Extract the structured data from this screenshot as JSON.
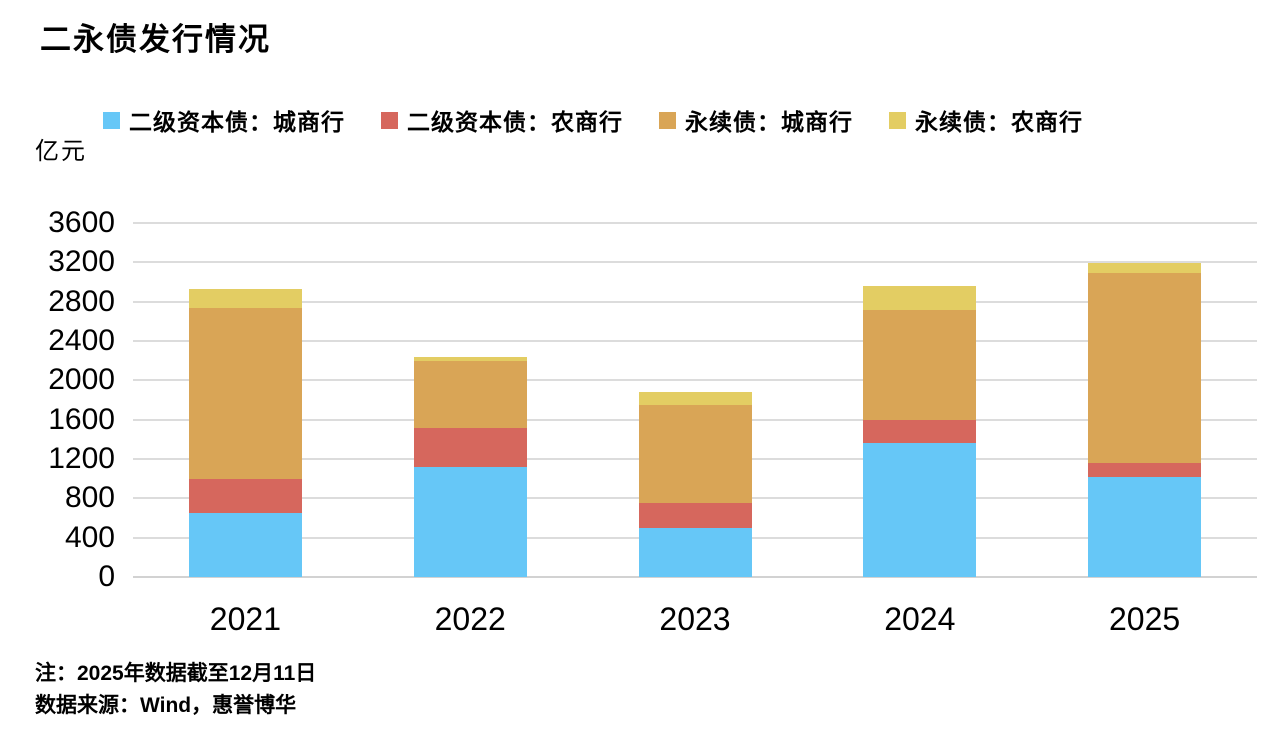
{
  "title": "二永债发行情况",
  "y_axis": {
    "unit_label": "亿元",
    "tick_values": [
      0,
      400,
      800,
      1200,
      1600,
      2000,
      2400,
      2800,
      3200,
      3600
    ],
    "max": 3600
  },
  "legend": {
    "items": [
      {
        "label": "二级资本债：城商行",
        "color": "#66C7F7"
      },
      {
        "label": "二级资本债：农商行",
        "color": "#D6675D"
      },
      {
        "label": "永续债：城商行",
        "color": "#D9A556"
      },
      {
        "label": "永续债：农商行",
        "color": "#E3CD63"
      }
    ]
  },
  "chart_data": {
    "type": "bar",
    "stacked": true,
    "title": "二永债发行情况",
    "xlabel": "",
    "ylabel": "亿元",
    "ylim": [
      0,
      3600
    ],
    "grid": true,
    "legend_position": "top",
    "categories": [
      "2021",
      "2022",
      "2023",
      "2024",
      "2025"
    ],
    "series": [
      {
        "name": "二级资本债：城商行",
        "color": "#66C7F7",
        "values": [
          650,
          1120,
          500,
          1360,
          1020
        ]
      },
      {
        "name": "二级资本债：农商行",
        "color": "#D6675D",
        "values": [
          350,
          400,
          250,
          240,
          140
        ]
      },
      {
        "name": "永续债：城商行",
        "color": "#D9A556",
        "values": [
          1740,
          680,
          1000,
          1120,
          1930
        ]
      },
      {
        "name": "永续债：农商行",
        "color": "#E3CD63",
        "values": [
          190,
          40,
          130,
          240,
          100
        ]
      }
    ],
    "totals": [
      2930,
      2240,
      1880,
      2960,
      3190
    ]
  },
  "notes": {
    "line1": "注：2025年数据截至12月11日",
    "line2": "数据来源：Wind，惠誉博华"
  },
  "colors": {
    "gridline": "#dcdcdc",
    "text": "#000000",
    "background": "#ffffff"
  }
}
